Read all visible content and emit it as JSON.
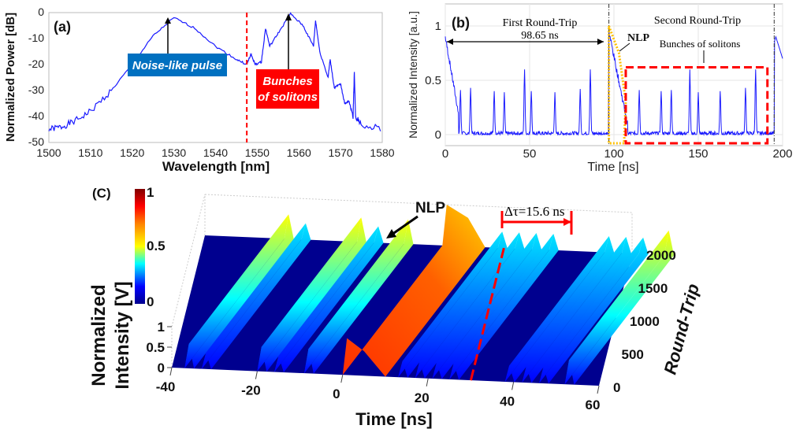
{
  "chart_data": [
    {
      "type": "line",
      "panel_label": "(a)",
      "xlabel": "Wavelength [nm]",
      "ylabel": "Normalized Power [dB]",
      "xlim": [
        1500,
        1580
      ],
      "ylim": [
        -50,
        0
      ],
      "xticks": [
        "1500",
        "1510",
        "1520",
        "1530",
        "1540",
        "1550",
        "1560",
        "1570",
        "1580"
      ],
      "yticks": [
        "0",
        "-10",
        "-20",
        "-30",
        "-40",
        "-50"
      ],
      "grid": false,
      "line_color": "#1a1aff",
      "series": [
        {
          "x": [
            1500,
            1503,
            1506,
            1510,
            1515,
            1520,
            1525,
            1530,
            1535,
            1540,
            1545,
            1547.5,
            1548.5,
            1549.5,
            1551,
            1552,
            1553,
            1555,
            1558,
            1561,
            1563.5,
            1564,
            1565,
            1567,
            1567.5,
            1568.5,
            1570,
            1571,
            1572,
            1573,
            1573.3,
            1573.6,
            1575,
            1580
          ],
          "y": [
            -45,
            -44,
            -42,
            -38,
            -30,
            -20,
            -9,
            -2,
            -6,
            -13,
            -18,
            -20,
            -16,
            -20,
            -19,
            -6,
            -13,
            -8,
            -0.5,
            -5,
            -13,
            -3,
            -15,
            -25,
            -18,
            -29,
            -27.5,
            -35,
            -34,
            -40,
            -23,
            -40,
            -43,
            -45
          ]
        }
      ],
      "vline": {
        "x": 1547.5,
        "color": "#ff0000",
        "style": "dashed"
      },
      "annotations": [
        {
          "text": "Noise-like pulse",
          "x": 1530,
          "y": -2,
          "box_color": "#0070c0"
        },
        {
          "text": "Bunches of solitons",
          "x": 1558,
          "y": -0.5,
          "box_color": "#ff0000"
        }
      ]
    },
    {
      "type": "line",
      "panel_label": "(b)",
      "xlabel": "Time [ns]",
      "ylabel": "Normalized Intensity [a.u.]",
      "xlim": [
        0,
        200
      ],
      "ylim": [
        -0.1,
        1.1
      ],
      "xticks": [
        "0",
        "50",
        "100",
        "150",
        "200"
      ],
      "yticks": [
        "0",
        "0.5",
        "1"
      ],
      "grid": true,
      "line_color": "#1a1aff",
      "soliton_peaks": {
        "t": [
          9,
          15,
          29,
          35,
          47,
          51,
          65,
          80,
          86,
          115,
          128,
          134,
          145,
          150,
          163,
          178,
          184
        ],
        "intensity": [
          0.41,
          0.43,
          0.4,
          0.39,
          0.6,
          0.4,
          0.39,
          0.42,
          0.6,
          0.41,
          0.4,
          0.41,
          0.6,
          0.39,
          0.4,
          0.43,
          0.6
        ]
      },
      "nlp": {
        "t_start": 97,
        "t_end": 108,
        "peak": 0.95
      },
      "round_trip_markers": [
        97,
        195
      ],
      "annotations": {
        "first": "First Round-Trip",
        "period": "98.65 ns",
        "second": "Second Round-Trip",
        "nlp": "NLP",
        "bunches": "Bunches of solitons"
      }
    },
    {
      "type": "surface",
      "panel_label": "(C)",
      "xlabel": "Time [ns]",
      "ylabel": "Round-Trip",
      "zlabel": "Normalized Intensity [V]",
      "xlim": [
        -40,
        60
      ],
      "ylim": [
        0,
        2000
      ],
      "zlim": [
        0,
        1
      ],
      "xticks": [
        "-40",
        "-20",
        "0",
        "20",
        "40",
        "60"
      ],
      "yticks": [
        "0",
        "500",
        "1000",
        "1500",
        "2000"
      ],
      "zticks": [
        "0",
        "0.5",
        "1"
      ],
      "colorbar": {
        "colormap": "jet",
        "ticks": [
          "0",
          "0.5",
          "1"
        ]
      },
      "drift_ns_per_2000_roundtrips": 15.6,
      "ridges": {
        "t0": [
          -37,
          -33,
          -20,
          -16,
          -9,
          13,
          17,
          21,
          25,
          38,
          42,
          46,
          52
        ],
        "height": [
          0.6,
          0.4,
          0.6,
          0.4,
          0.6,
          0.4,
          0.4,
          0.4,
          0.4,
          0.4,
          0.4,
          0.4,
          0.6
        ]
      },
      "nlp_t_range": [
        0,
        10
      ],
      "annotations": {
        "nlp": "NLP",
        "delta": "Δτ=15.6 ns"
      }
    }
  ]
}
